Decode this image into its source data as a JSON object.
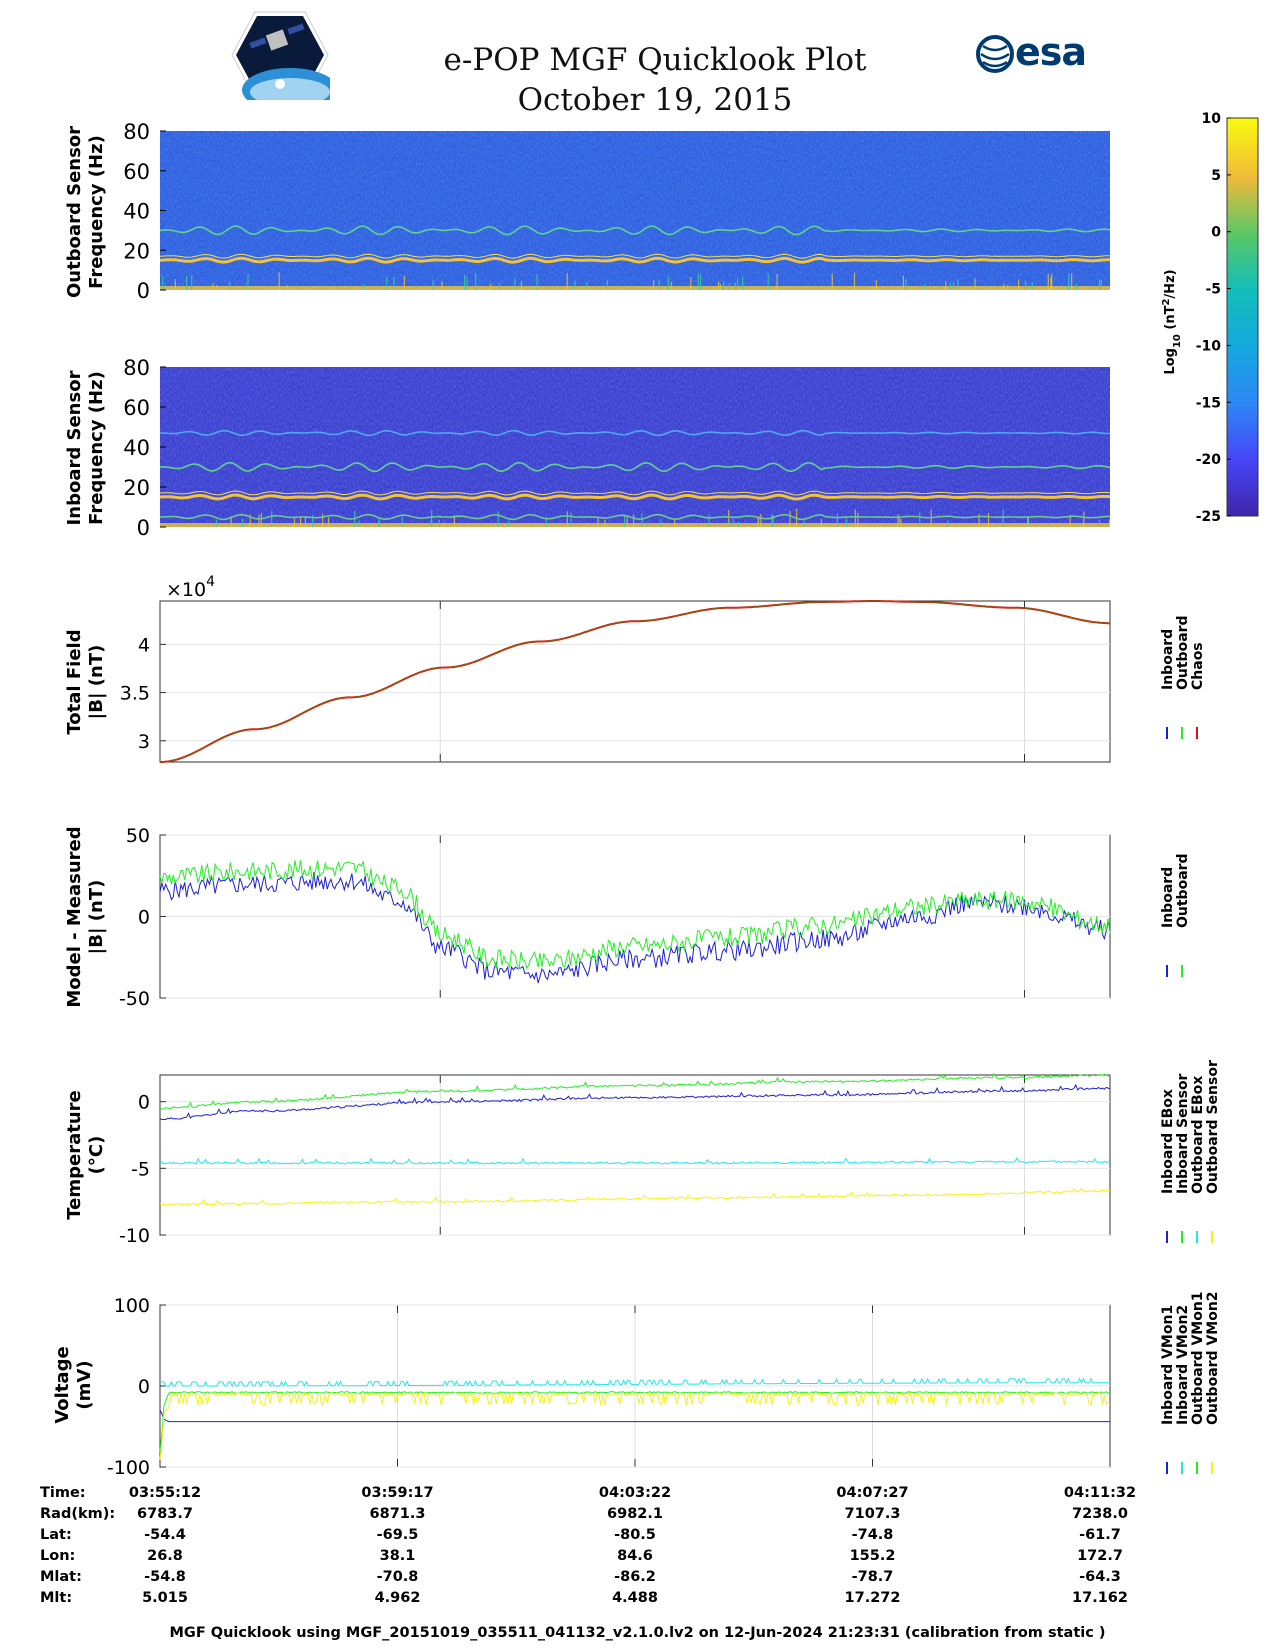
{
  "title": "e-POP MGF Quicklook Plot",
  "date": "October 19, 2015",
  "logo_right": "esa",
  "colors": {
    "inboard": "#1f1fd0",
    "outboard": "#22ee22",
    "chaos": "#e01010",
    "cyan": "#22e6ef",
    "yellow": "#f4f410",
    "spectro_bg": "#2f5fe0",
    "inboard_bg": "#3b3fcf"
  },
  "chart_data": [
    {
      "type": "heatmap",
      "name": "outboard-spectrogram",
      "ylabel": "Outboard Sensor\nFrequency (Hz)",
      "ylabel_lines": [
        "Outboard Sensor",
        "Frequency (Hz)"
      ],
      "ylim": [
        0,
        80
      ],
      "yticks": [
        0,
        20,
        40,
        60,
        80
      ],
      "features_hz": [
        15,
        30
      ]
    },
    {
      "type": "heatmap",
      "name": "inboard-spectrogram",
      "ylabel_lines": [
        "Inboard Sensor",
        "Frequency (Hz)"
      ],
      "ylim": [
        0,
        80
      ],
      "yticks": [
        0,
        20,
        40,
        60,
        80
      ],
      "features_hz": [
        5,
        15,
        30,
        47
      ]
    },
    {
      "type": "colorbar",
      "label": "Log10 (nT2/Hz)",
      "label_parts": {
        "base": "Log",
        "sub": "10",
        "mid": " (nT",
        "sup": "2",
        "end": "/Hz)"
      },
      "clim": [
        -25,
        10
      ],
      "ticks": [
        10,
        5,
        0,
        -5,
        -10,
        -15,
        -20,
        -25
      ]
    },
    {
      "type": "line",
      "name": "total-field",
      "ylabel_lines": [
        "Total Field",
        "|B| (nT)"
      ],
      "ylim": [
        2.78,
        4.45
      ],
      "yticks": [
        3,
        3.5,
        4
      ],
      "exponent": "4",
      "legend": [
        "Inboard",
        "Outboard",
        "Chaos"
      ],
      "x": [
        0,
        0.1,
        0.2,
        0.3,
        0.4,
        0.5,
        0.6,
        0.7,
        0.75,
        0.8,
        0.9,
        1.0
      ],
      "values": [
        2.78,
        3.12,
        3.45,
        3.76,
        4.03,
        4.24,
        4.38,
        4.44,
        4.45,
        4.44,
        4.38,
        4.22
      ]
    },
    {
      "type": "line",
      "name": "model-minus-measured",
      "ylabel_lines": [
        "Model - Measured",
        "|B| (nT)"
      ],
      "ylim": [
        -50,
        50
      ],
      "yticks": [
        -50,
        0,
        50
      ],
      "legend": [
        "Inboard",
        "Outboard"
      ],
      "series": [
        {
          "name": "Outboard",
          "x": [
            0,
            0.1,
            0.2,
            0.25,
            0.3,
            0.35,
            0.4,
            0.5,
            0.6,
            0.7,
            0.8,
            0.85,
            0.9,
            1.0
          ],
          "values": [
            24,
            28,
            30,
            18,
            -12,
            -26,
            -28,
            -18,
            -13,
            -5,
            6,
            10,
            10,
            -5
          ]
        },
        {
          "name": "Inboard",
          "x": [
            0,
            0.1,
            0.2,
            0.25,
            0.3,
            0.35,
            0.4,
            0.5,
            0.6,
            0.7,
            0.8,
            0.85,
            0.9,
            1.0
          ],
          "values": [
            16,
            20,
            22,
            10,
            -20,
            -34,
            -36,
            -26,
            -21,
            -14,
            0,
            8,
            7,
            -8
          ]
        }
      ]
    },
    {
      "type": "line",
      "name": "temperature",
      "ylabel_lines": [
        "Temperature",
        "(°C)"
      ],
      "ylim": [
        -10,
        2
      ],
      "yticks": [
        -10,
        -5,
        0
      ],
      "legend": [
        "Inboard EBox",
        "Inboard Sensor",
        "Outboard EBox",
        "Outboard Sensor"
      ],
      "series": [
        {
          "name": "Inboard EBox",
          "x": [
            0,
            0.1,
            0.3,
            0.5,
            0.7,
            0.9,
            1.0
          ],
          "values": [
            -1.3,
            -0.7,
            0.0,
            0.3,
            0.5,
            0.8,
            1.0
          ]
        },
        {
          "name": "Inboard Sensor",
          "x": [
            0,
            0.1,
            0.3,
            0.5,
            0.7,
            0.9,
            1.0
          ],
          "values": [
            -0.5,
            0.0,
            0.8,
            1.2,
            1.5,
            1.8,
            2.0
          ]
        },
        {
          "name": "Outboard EBox",
          "x": [
            0,
            0.5,
            1.0
          ],
          "values": [
            -4.6,
            -4.6,
            -4.5
          ]
        },
        {
          "name": "Outboard Sensor",
          "x": [
            0,
            0.3,
            0.6,
            0.8,
            1.0
          ],
          "values": [
            -7.7,
            -7.5,
            -7.2,
            -7.0,
            -6.7
          ]
        }
      ]
    },
    {
      "type": "line",
      "name": "voltage",
      "ylabel_lines": [
        "Voltage",
        "(mV)"
      ],
      "ylim": [
        -100,
        100
      ],
      "yticks": [
        -100,
        0,
        100
      ],
      "legend": [
        "Inboard VMon1",
        "Inboard VMon2",
        "Outboard VMon1",
        "Outboard VMon2"
      ],
      "series": [
        {
          "name": "Inboard VMon1",
          "x": [
            0,
            0.005,
            0.01,
            1.0
          ],
          "values": [
            -30,
            -42,
            -44,
            -44
          ]
        },
        {
          "name": "Inboard VMon2",
          "x": [
            0,
            1.0
          ],
          "values": [
            0,
            4
          ]
        },
        {
          "name": "Outboard VMon1",
          "x": [
            0,
            0.005,
            0.01,
            1.0
          ],
          "values": [
            -80,
            -20,
            -8,
            -8
          ]
        },
        {
          "name": "Outboard VMon2",
          "x": [
            0,
            0.005,
            0.01,
            1.0
          ],
          "values": [
            -90,
            -30,
            -10,
            -10
          ]
        }
      ]
    }
  ],
  "ephemeris": {
    "labels": [
      "Time:",
      "Rad(km):",
      "Lat:",
      "Lon:",
      "Mlat:",
      "Mlt:"
    ],
    "columns": [
      [
        "03:55:12",
        "6783.7",
        "-54.4",
        "26.8",
        "-54.8",
        "5.015"
      ],
      [
        "03:59:17",
        "6871.3",
        "-69.5",
        "38.1",
        "-70.8",
        "4.962"
      ],
      [
        "04:03:22",
        "6982.1",
        "-80.5",
        "84.6",
        "-86.2",
        "4.488"
      ],
      [
        "04:07:27",
        "7107.3",
        "-74.8",
        "155.2",
        "-78.7",
        "17.272"
      ],
      [
        "04:11:32",
        "7238.0",
        "-61.7",
        "172.7",
        "-64.3",
        "17.162"
      ]
    ]
  },
  "footer": "MGF Quicklook using MGF_20151019_035511_041132_v2.1.0.lv2 on 12-Jun-2024 21:23:31 (calibration from static )"
}
